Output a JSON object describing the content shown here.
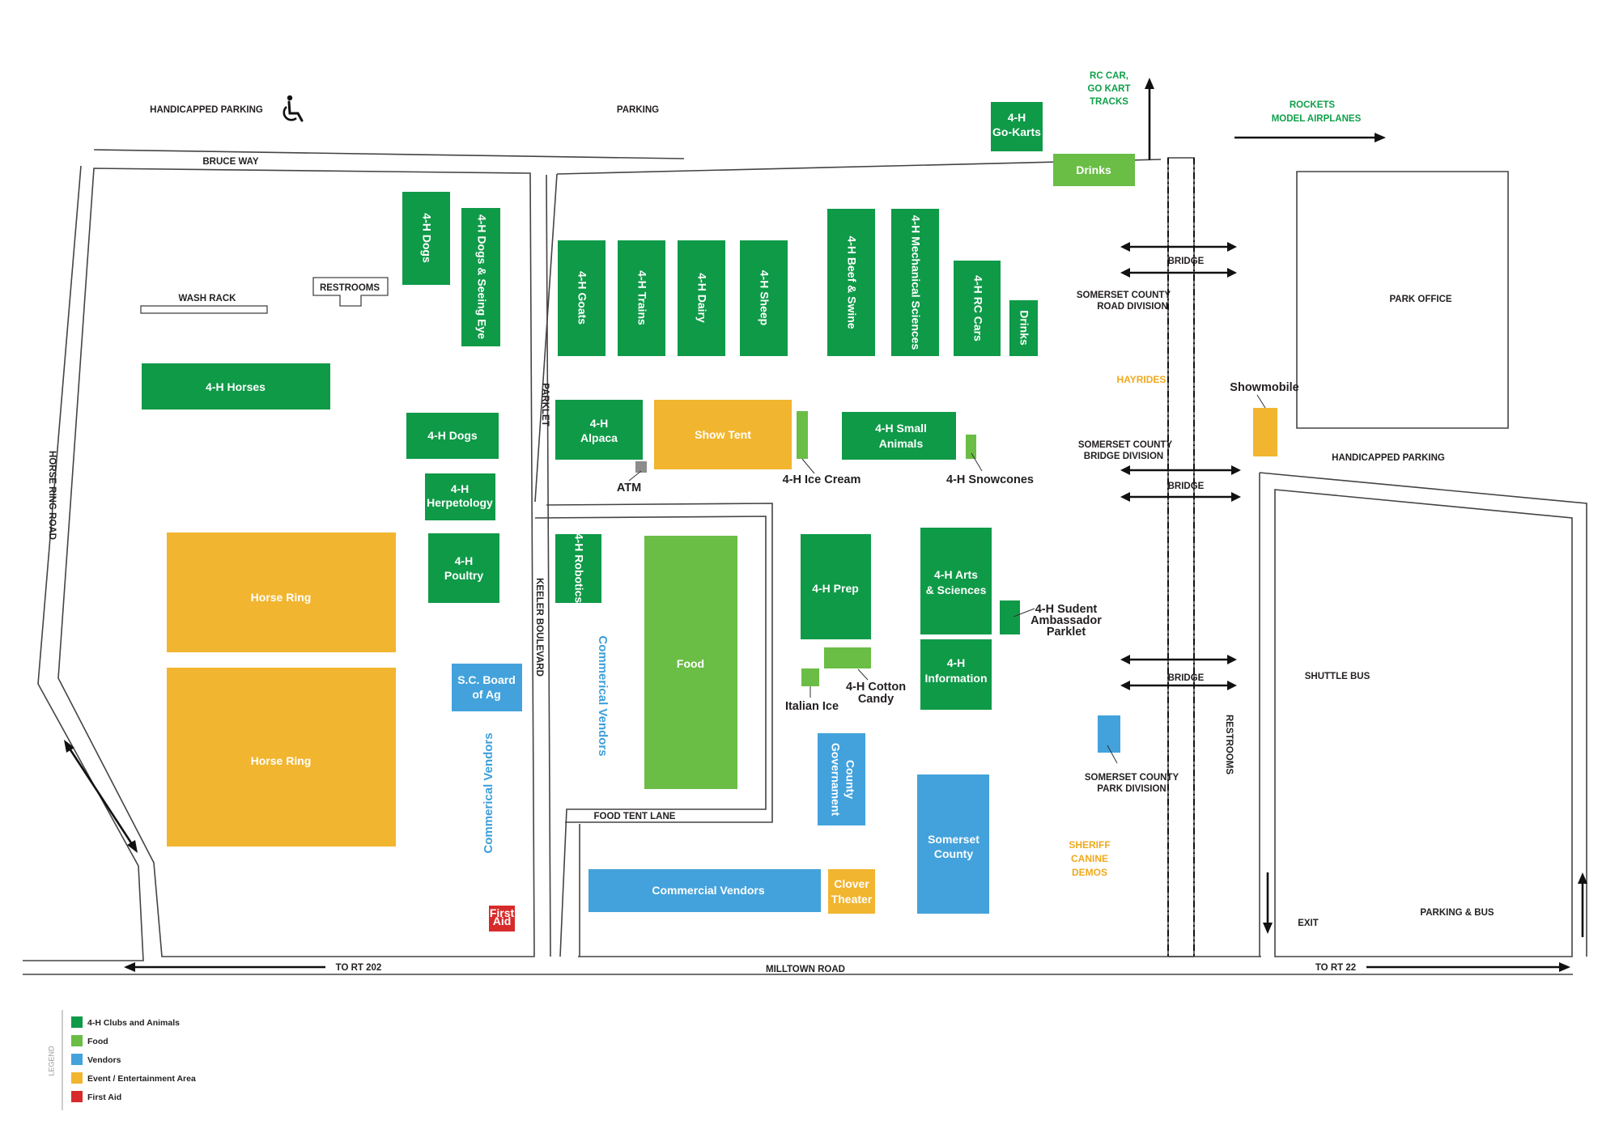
{
  "colors": {
    "clubs": "#0f9a48",
    "food": "#6abd45",
    "vendors": "#43a2dc",
    "event": "#f1b52f",
    "first_aid": "#d72a2a"
  },
  "icons": [
    "wheelchair-icon"
  ],
  "top": {
    "handicapped_parking": "HANDICAPPED PARKING",
    "parking": "PARKING",
    "rc_line1": "RC CAR,",
    "rc_line2": "GO KART",
    "rc_line3": "TRACKS",
    "rockets_line1": "ROCKETS",
    "rockets_line2": "MODEL AIRPLANES"
  },
  "roads": {
    "bruce_way": "BRUCE WAY",
    "horse_ring_road": "HORSE RING ROAD",
    "keeler": "KEELER BOULEVARD",
    "parklet": "PARKLET",
    "food_tent_lane": "FOOD TENT LANE",
    "to_rt202": "TO RT 202",
    "milltown": "MILLTOWN ROAD",
    "to_rt22": "TO RT 22"
  },
  "labels": {
    "wash_rack": "WASH RACK",
    "restrooms": "RESTROOMS",
    "restrooms_vertical": "RESTROOMS",
    "atm": "ATM",
    "bridge": "BRIDGE",
    "road_div1": "SOMERSET COUNTY",
    "road_div2": "ROAD DIVISION",
    "bridge_div1": "SOMERSET COUNTY",
    "bridge_div2": "BRIDGE DIVISION",
    "park_div1": "SOMERSET COUNTY",
    "park_div2": "PARK DIVISION",
    "hayrides": "HAYRIDES",
    "showmobile": "Showmobile",
    "handicapped_parking_right": "HANDICAPPED PARKING",
    "park_office": "PARK OFFICE",
    "shuttle_bus": "SHUTTLE BUS",
    "parking_bus": "PARKING & BUS",
    "exit": "EXIT",
    "sheriff1": "SHERIFF",
    "sheriff2": "CANINE",
    "sheriff3": "DEMOS",
    "ice_cream": "4-H Ice Cream",
    "snowcones": "4-H Snowcones",
    "italian_ice": "Italian Ice",
    "cotton1": "4-H Cotton",
    "cotton2": "Candy",
    "ambassador1": "4-H Sudent",
    "ambassador2": "Ambassador",
    "ambassador3": "Parklet",
    "commercial_vendors_a": "Commerical Vendors",
    "commercial_vendors_b": "Commerical Vendors"
  },
  "buildings": {
    "go_karts_1": "4-H",
    "go_karts_2": "Go-Karts",
    "drinks_top": "Drinks",
    "dogs_v": "4-H Dogs",
    "dogs_seeing_eye": "4-H Dogs & Seeing Eye",
    "goats": "4-H Goats",
    "trains": "4-H Trains",
    "dairy": "4-H Dairy",
    "sheep": "4-H Sheep",
    "beef_swine": "4-H Beef & Swine",
    "mech_sci": "4-H Mechanical Sciences",
    "rc_cars": "4-H RC Cars",
    "drinks_v": "Drinks",
    "horses": "4-H Horses",
    "dogs_h": "4-H Dogs",
    "herp_1": "4-H",
    "herp_2": "Herpetology",
    "poultry_1": "4-H",
    "poultry_2": "Poultry",
    "alpaca_1": "4-H",
    "alpaca_2": "Alpaca",
    "show_tent": "Show Tent",
    "small_animals_1": "4-H Small",
    "small_animals_2": "Animals",
    "robotics": "4-H Robotics",
    "food": "Food",
    "prep": "4-H Prep",
    "arts_1": "4-H Arts",
    "arts_2": "& Sciences",
    "info_1": "4-H",
    "info_2": "Information",
    "horse_ring_1": "Horse Ring",
    "horse_ring_2": "Horse Ring",
    "board_ag_1": "S.C. Board",
    "board_ag_2": "of Ag",
    "county_gov_1": "County",
    "county_gov_2": "Governament",
    "somerset_1": "Somerset",
    "somerset_2": "County",
    "commercial_vendors": "Commercial Vendors",
    "clover_1": "Clover",
    "clover_2": "Theater",
    "first_aid_1": "First",
    "first_aid_2": "Aid"
  },
  "legend": {
    "title": "LEGEND",
    "items": [
      {
        "label": "4-H Clubs and Animals",
        "color": "#0f9a48"
      },
      {
        "label": "Food",
        "color": "#6abd45"
      },
      {
        "label": "Vendors",
        "color": "#43a2dc"
      },
      {
        "label": "Event / Entertainment Area",
        "color": "#f1b52f"
      },
      {
        "label": "First Aid",
        "color": "#d72a2a"
      }
    ]
  }
}
